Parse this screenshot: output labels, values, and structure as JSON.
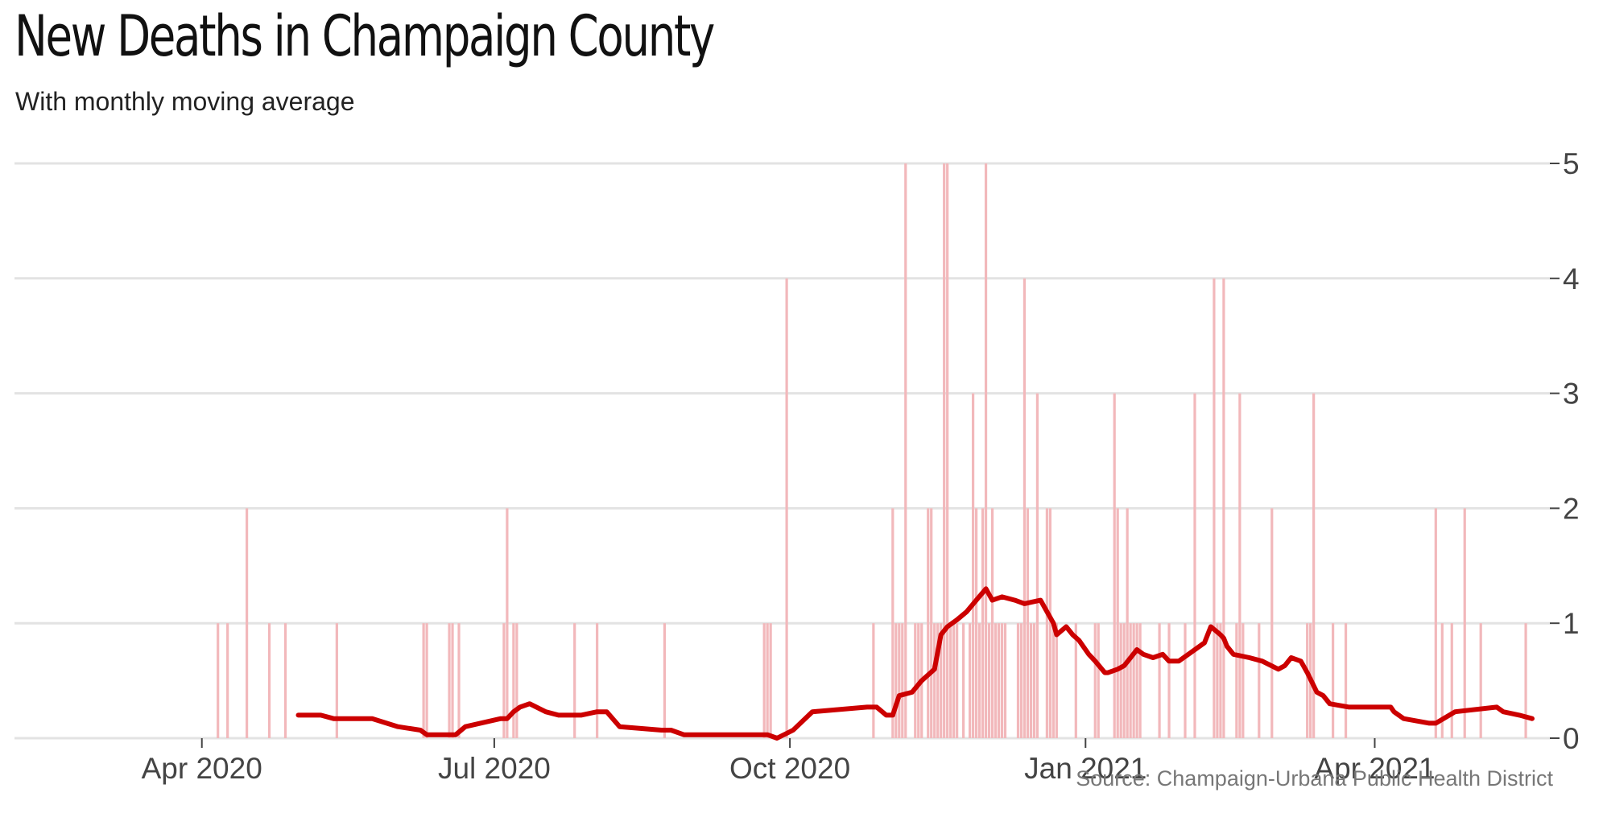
{
  "title": "New Deaths in Champaign County",
  "subtitle": "With monthly moving average",
  "source": "Source: Champaign-Urbana Public Health District",
  "chart_data": {
    "type": "bar",
    "title": "New Deaths in Champaign County",
    "subtitle": "With monthly moving average",
    "ylim": [
      0,
      5
    ],
    "y_ticks": [
      0,
      1,
      2,
      3,
      4,
      5
    ],
    "y_tick_labels": [
      "0",
      "1",
      "2",
      "3",
      "4",
      "5"
    ],
    "xlim": [
      "2020-03-01",
      "2021-05-25"
    ],
    "x_ticks": [
      "2020-04-01",
      "2020-07-01",
      "2020-10-01",
      "2021-01-01",
      "2021-04-01"
    ],
    "x_tick_labels": [
      "Apr 2020",
      "Jul 2020",
      "Oct 2020",
      "Jan 2021",
      "Apr 2021"
    ],
    "grid": "horizontal",
    "bar_color": "#f2b8bb",
    "line_color": "#cc0000",
    "series": [
      {
        "type": "bar",
        "x": [
          "2020-04-06",
          "2020-04-09",
          "2020-04-15",
          "2020-04-22",
          "2020-04-27",
          "2020-05-13",
          "2020-06-09",
          "2020-06-10",
          "2020-06-17",
          "2020-06-18",
          "2020-06-20",
          "2020-07-04",
          "2020-07-05",
          "2020-07-07",
          "2020-07-08",
          "2020-07-26",
          "2020-08-02",
          "2020-08-23",
          "2020-09-23",
          "2020-09-24",
          "2020-09-25",
          "2020-09-30",
          "2020-10-27",
          "2020-11-02",
          "2020-11-03",
          "2020-11-04",
          "2020-11-05",
          "2020-11-06",
          "2020-11-09",
          "2020-11-10",
          "2020-11-11",
          "2020-11-13",
          "2020-11-14",
          "2020-11-15",
          "2020-11-16",
          "2020-11-17",
          "2020-11-18",
          "2020-11-19",
          "2020-11-20",
          "2020-11-21",
          "2020-11-22",
          "2020-11-24",
          "2020-11-26",
          "2020-11-27",
          "2020-11-28",
          "2020-11-29",
          "2020-11-30",
          "2020-12-01",
          "2020-12-02",
          "2020-12-03",
          "2020-12-04",
          "2020-12-05",
          "2020-12-06",
          "2020-12-07",
          "2020-12-11",
          "2020-12-12",
          "2020-12-13",
          "2020-12-14",
          "2020-12-15",
          "2020-12-16",
          "2020-12-17",
          "2020-12-20",
          "2020-12-21",
          "2020-12-22",
          "2020-12-23",
          "2020-12-29",
          "2021-01-04",
          "2021-01-05",
          "2021-01-10",
          "2021-01-11",
          "2021-01-12",
          "2021-01-13",
          "2021-01-14",
          "2021-01-15",
          "2021-01-16",
          "2021-01-17",
          "2021-01-18",
          "2021-01-24",
          "2021-01-27",
          "2021-02-01",
          "2021-02-04",
          "2021-02-10",
          "2021-02-11",
          "2021-02-12",
          "2021-02-13",
          "2021-02-17",
          "2021-02-18",
          "2021-02-19",
          "2021-02-24",
          "2021-02-28",
          "2021-03-11",
          "2021-03-12",
          "2021-03-13",
          "2021-03-19",
          "2021-03-23",
          "2021-04-20",
          "2021-04-22",
          "2021-04-25",
          "2021-04-29",
          "2021-05-04",
          "2021-05-18"
        ],
        "values": [
          1,
          1,
          2,
          1,
          1,
          1,
          1,
          1,
          1,
          1,
          1,
          1,
          2,
          1,
          1,
          1,
          1,
          1,
          1,
          1,
          1,
          4,
          1,
          2,
          1,
          1,
          1,
          5,
          1,
          1,
          1,
          2,
          2,
          1,
          1,
          1,
          5,
          5,
          1,
          1,
          1,
          1,
          1,
          3,
          2,
          1,
          2,
          5,
          1,
          2,
          1,
          1,
          1,
          1,
          1,
          1,
          4,
          2,
          1,
          1,
          3,
          2,
          2,
          1,
          1,
          1,
          1,
          1,
          3,
          2,
          1,
          1,
          2,
          1,
          1,
          1,
          1,
          1,
          1,
          1,
          3,
          4,
          1,
          1,
          4,
          1,
          3,
          1,
          1,
          2,
          1,
          1,
          3,
          1,
          1,
          2,
          1,
          1,
          2,
          1,
          1
        ]
      },
      {
        "type": "line",
        "name": "monthly moving average",
        "x": [
          "2020-05-01",
          "2020-05-08",
          "2020-05-12",
          "2020-05-16",
          "2020-05-20",
          "2020-05-24",
          "2020-06-01",
          "2020-06-08",
          "2020-06-10",
          "2020-06-13",
          "2020-06-16",
          "2020-06-19",
          "2020-06-22",
          "2020-07-03",
          "2020-07-05",
          "2020-07-07",
          "2020-07-09",
          "2020-07-12",
          "2020-07-17",
          "2020-07-21",
          "2020-07-23",
          "2020-07-28",
          "2020-08-02",
          "2020-08-05",
          "2020-08-09",
          "2020-08-22",
          "2020-08-25",
          "2020-08-29",
          "2020-09-24",
          "2020-09-27",
          "2020-10-02",
          "2020-10-08",
          "2020-10-25",
          "2020-10-28",
          "2020-10-31",
          "2020-11-02",
          "2020-11-04",
          "2020-11-08",
          "2020-11-11",
          "2020-11-15",
          "2020-11-17",
          "2020-11-19",
          "2020-11-22",
          "2020-11-25",
          "2020-11-28",
          "2020-12-01",
          "2020-12-03",
          "2020-12-06",
          "2020-12-10",
          "2020-12-13",
          "2020-12-18",
          "2020-12-22",
          "2020-12-23",
          "2020-12-26",
          "2020-12-28",
          "2020-12-30",
          "2021-01-02",
          "2021-01-04",
          "2021-01-07",
          "2021-01-08",
          "2021-01-11",
          "2021-01-13",
          "2021-01-15",
          "2021-01-17",
          "2021-01-19",
          "2021-01-22",
          "2021-01-25",
          "2021-01-27",
          "2021-01-30",
          "2021-02-02",
          "2021-02-07",
          "2021-02-09",
          "2021-02-12",
          "2021-02-13",
          "2021-02-14",
          "2021-02-16",
          "2021-02-21",
          "2021-02-25",
          "2021-03-02",
          "2021-03-04",
          "2021-03-06",
          "2021-03-09",
          "2021-03-11",
          "2021-03-14",
          "2021-03-16",
          "2021-03-18",
          "2021-03-24",
          "2021-03-26",
          "2021-03-28",
          "2021-04-06",
          "2021-04-07",
          "2021-04-10",
          "2021-04-18",
          "2021-04-20",
          "2021-04-26",
          "2021-05-09",
          "2021-05-11",
          "2021-05-16",
          "2021-05-20"
        ],
        "values": [
          0.2,
          0.2,
          0.17,
          0.17,
          0.17,
          0.17,
          0.1,
          0.07,
          0.03,
          0.03,
          0.03,
          0.03,
          0.1,
          0.17,
          0.17,
          0.23,
          0.27,
          0.3,
          0.23,
          0.2,
          0.2,
          0.2,
          0.23,
          0.23,
          0.1,
          0.07,
          0.07,
          0.03,
          0.03,
          0.0,
          0.07,
          0.23,
          0.27,
          0.27,
          0.2,
          0.2,
          0.37,
          0.4,
          0.5,
          0.6,
          0.9,
          0.97,
          1.03,
          1.1,
          1.2,
          1.3,
          1.2,
          1.23,
          1.2,
          1.17,
          1.2,
          1.0,
          0.9,
          0.97,
          0.9,
          0.85,
          0.73,
          0.67,
          0.57,
          0.57,
          0.6,
          0.63,
          0.7,
          0.77,
          0.73,
          0.7,
          0.73,
          0.67,
          0.67,
          0.73,
          0.83,
          0.97,
          0.9,
          0.87,
          0.8,
          0.73,
          0.7,
          0.67,
          0.6,
          0.63,
          0.7,
          0.67,
          0.57,
          0.4,
          0.37,
          0.3,
          0.27,
          0.27,
          0.27,
          0.27,
          0.23,
          0.17,
          0.13,
          0.13,
          0.23,
          0.27,
          0.23,
          0.2,
          0.17
        ]
      }
    ]
  }
}
